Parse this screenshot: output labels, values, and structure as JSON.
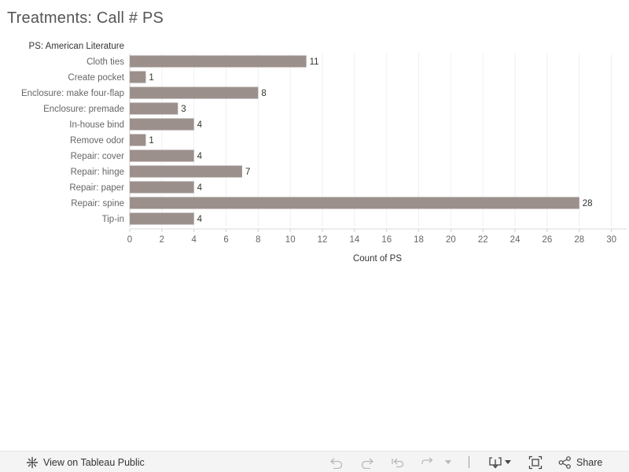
{
  "title": "Treatments: Call # PS",
  "chart_data": {
    "type": "bar",
    "orientation": "horizontal",
    "row_header": "PS: American Literature",
    "categories": [
      "Cloth ties",
      "Create pocket",
      "Enclosure: make four-flap",
      "Enclosure: premade",
      "In-house bind",
      "Remove odor",
      "Repair: cover",
      "Repair: hinge",
      "Repair: paper",
      "Repair: spine",
      "Tip-in"
    ],
    "values": [
      11,
      1,
      8,
      3,
      4,
      1,
      4,
      7,
      4,
      28,
      4
    ],
    "xlabel": "Count of PS",
    "ylabel": "",
    "xlim": [
      0,
      31
    ],
    "xticks": [
      0,
      2,
      4,
      6,
      8,
      10,
      12,
      14,
      16,
      18,
      20,
      22,
      24,
      26,
      28,
      30
    ],
    "grid": "vertical",
    "bar_color": "#9c908c"
  },
  "toolbar": {
    "view_label": "View on Tableau Public",
    "share_label": "Share",
    "icons": [
      "tableau-logo-icon",
      "undo-icon",
      "redo-icon",
      "revert-icon",
      "refresh-icon",
      "dropdown-icon",
      "download-icon",
      "fullscreen-icon",
      "share-icon"
    ]
  }
}
